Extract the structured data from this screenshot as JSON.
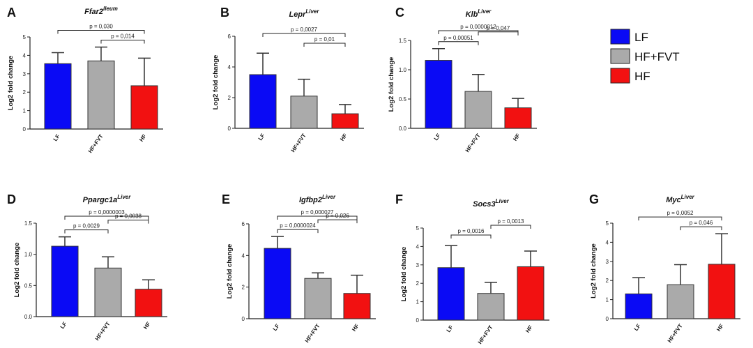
{
  "legend": [
    {
      "label": "LF",
      "color": "#0a0af5"
    },
    {
      "label": "HF+FVT",
      "color": "#aaaaaa"
    },
    {
      "label": "HF",
      "color": "#f21111"
    }
  ],
  "chart_data": [
    {
      "panel": "A",
      "type": "bar",
      "title": "Ffar2",
      "title_sup": "Ileum",
      "ylabel": "Log2 fold change",
      "categories": [
        "LF",
        "HF+FVT",
        "HF"
      ],
      "values": [
        3.55,
        3.7,
        2.35
      ],
      "errors": [
        0.6,
        0.75,
        1.5
      ],
      "ylim": [
        0,
        5
      ],
      "yticks": [
        "0",
        "1",
        "2",
        "3",
        "4",
        "5"
      ],
      "comparisons": [
        {
          "from": 0,
          "to": 2,
          "label": "p = 0,030"
        },
        {
          "from": 1,
          "to": 2,
          "label": "p = 0,014"
        }
      ]
    },
    {
      "panel": "B",
      "type": "bar",
      "title": "Lepr",
      "title_sup": "Liver",
      "ylabel": "Log2 fold change",
      "categories": [
        "LF",
        "HF+FVT",
        "HF"
      ],
      "values": [
        3.5,
        2.1,
        0.95
      ],
      "errors": [
        1.4,
        1.1,
        0.6
      ],
      "ylim": [
        0,
        6
      ],
      "yticks": [
        "0",
        "2",
        "4",
        "6"
      ],
      "comparisons": [
        {
          "from": 0,
          "to": 2,
          "label": "p = 0,0027"
        },
        {
          "from": 1,
          "to": 2,
          "label": "p = 0,01"
        }
      ]
    },
    {
      "panel": "C",
      "type": "bar",
      "title": "Klb",
      "title_sup": "Liver",
      "ylabel": "Log2 fold change",
      "categories": [
        "LF",
        "HF+FVT",
        "HF"
      ],
      "values": [
        1.16,
        0.63,
        0.35
      ],
      "errors": [
        0.2,
        0.29,
        0.16
      ],
      "ylim": [
        0,
        1.5
      ],
      "yticks": [
        "0.0",
        "0.5",
        "1.0",
        "1.5"
      ],
      "comparisons": [
        {
          "from": 0,
          "to": 1,
          "label": "p = 0,00051"
        },
        {
          "from": 0,
          "to": 2,
          "label": "p = 0,0000012"
        },
        {
          "from": 1,
          "to": 2,
          "label": "p = 0,047"
        }
      ]
    },
    {
      "panel": "D",
      "type": "bar",
      "title": "Ppargc1a",
      "title_sup": "Liver",
      "ylabel": "Log2 fold change",
      "categories": [
        "LF",
        "HF+FVT",
        "HF"
      ],
      "values": [
        1.13,
        0.78,
        0.44
      ],
      "errors": [
        0.15,
        0.18,
        0.15
      ],
      "ylim": [
        0,
        1.5
      ],
      "yticks": [
        "0.0",
        "0.5",
        "1.0",
        "1.5"
      ],
      "comparisons": [
        {
          "from": 0,
          "to": 1,
          "label": "p = 0,0029"
        },
        {
          "from": 0,
          "to": 2,
          "label": "p = 0,0000003"
        },
        {
          "from": 1,
          "to": 2,
          "label": "p = 0,0038"
        }
      ]
    },
    {
      "panel": "E",
      "type": "bar",
      "title": "Igfbp2",
      "title_sup": "Liver",
      "ylabel": "Log2 fold change",
      "categories": [
        "LF",
        "HF+FVT",
        "HF"
      ],
      "values": [
        4.45,
        2.55,
        1.6
      ],
      "errors": [
        0.75,
        0.35,
        1.15
      ],
      "ylim": [
        0,
        6
      ],
      "yticks": [
        "0",
        "2",
        "4",
        "6"
      ],
      "comparisons": [
        {
          "from": 0,
          "to": 1,
          "label": "p = 0,0000024"
        },
        {
          "from": 0,
          "to": 2,
          "label": "p = 0,000027"
        },
        {
          "from": 1,
          "to": 2,
          "label": "p = 0,026"
        }
      ]
    },
    {
      "panel": "F",
      "type": "bar",
      "title": "Socs3",
      "title_sup": "Liver",
      "ylabel": "Log2 fold change",
      "categories": [
        "LF",
        "HF+FVT",
        "HF"
      ],
      "values": [
        2.85,
        1.45,
        2.9
      ],
      "errors": [
        1.2,
        0.6,
        0.85
      ],
      "ylim": [
        0,
        5
      ],
      "yticks": [
        "0",
        "1",
        "2",
        "3",
        "4",
        "5"
      ],
      "comparisons": [
        {
          "from": 0,
          "to": 1,
          "label": "p = 0,0016"
        },
        {
          "from": 1,
          "to": 2,
          "label": "p = 0,0013"
        }
      ]
    },
    {
      "panel": "G",
      "type": "bar",
      "title": "Myc",
      "title_sup": "Liver",
      "ylabel": "Log2 fold change",
      "categories": [
        "LF",
        "HF+FVT",
        "HF"
      ],
      "values": [
        1.3,
        1.78,
        2.85
      ],
      "errors": [
        0.85,
        1.05,
        1.6
      ],
      "ylim": [
        0,
        5
      ],
      "yticks": [
        "0",
        "1",
        "2",
        "3",
        "4",
        "5"
      ],
      "comparisons": [
        {
          "from": 0,
          "to": 2,
          "label": "p = 0,0052"
        },
        {
          "from": 1,
          "to": 2,
          "label": "p = 0,046"
        }
      ]
    }
  ]
}
